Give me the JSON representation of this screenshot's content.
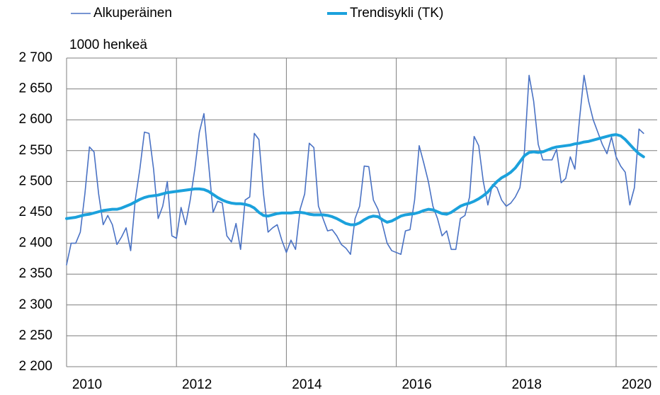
{
  "chart_data": {
    "type": "line",
    "y_label": "1000 henkeä",
    "categories": [
      "2010",
      null,
      null,
      null,
      null,
      null,
      null,
      null,
      null,
      null,
      null,
      null,
      null,
      null,
      null,
      null,
      null,
      null,
      null,
      null,
      null,
      null,
      null,
      null,
      "2012",
      null,
      null,
      null,
      null,
      null,
      null,
      null,
      null,
      null,
      null,
      null,
      null,
      null,
      null,
      null,
      null,
      null,
      null,
      null,
      null,
      null,
      null,
      null,
      "2014",
      null,
      null,
      null,
      null,
      null,
      null,
      null,
      null,
      null,
      null,
      null,
      null,
      null,
      null,
      null,
      null,
      null,
      null,
      null,
      null,
      null,
      null,
      null,
      "2016",
      null,
      null,
      null,
      null,
      null,
      null,
      null,
      null,
      null,
      null,
      null,
      null,
      null,
      null,
      null,
      null,
      null,
      null,
      null,
      null,
      null,
      null,
      null,
      "2018",
      null,
      null,
      null,
      null,
      null,
      null,
      null,
      null,
      null,
      null,
      null,
      null,
      null,
      null,
      null,
      null,
      null,
      null,
      null,
      null,
      null,
      null,
      null,
      "2020",
      null,
      null,
      null,
      null,
      null,
      null
    ],
    "series": [
      {
        "name": "Alkuperäinen",
        "color": "#4a72c4",
        "width": 1.6,
        "values": [
          2365,
          2400,
          2400,
          2418,
          2480,
          2556,
          2548,
          2480,
          2430,
          2445,
          2430,
          2398,
          2410,
          2425,
          2388,
          2470,
          2520,
          2580,
          2578,
          2520,
          2440,
          2460,
          2500,
          2412,
          2408,
          2458,
          2430,
          2470,
          2520,
          2580,
          2610,
          2530,
          2450,
          2468,
          2465,
          2412,
          2402,
          2432,
          2390,
          2470,
          2475,
          2578,
          2568,
          2480,
          2418,
          2425,
          2430,
          2405,
          2385,
          2405,
          2390,
          2455,
          2480,
          2562,
          2555,
          2460,
          2440,
          2420,
          2422,
          2412,
          2398,
          2392,
          2382,
          2440,
          2460,
          2525,
          2524,
          2470,
          2455,
          2430,
          2400,
          2388,
          2385,
          2382,
          2420,
          2422,
          2470,
          2558,
          2530,
          2500,
          2460,
          2440,
          2412,
          2420,
          2390,
          2390,
          2440,
          2445,
          2475,
          2573,
          2558,
          2500,
          2462,
          2495,
          2490,
          2470,
          2460,
          2465,
          2475,
          2490,
          2550,
          2672,
          2630,
          2560,
          2535,
          2535,
          2535,
          2552,
          2498,
          2505,
          2540,
          2520,
          2600,
          2672,
          2630,
          2600,
          2580,
          2560,
          2545,
          2572,
          2540,
          2525,
          2515,
          2462,
          2490,
          2585,
          2578
        ]
      },
      {
        "name": "Trendisykli (TK)",
        "color": "#1ba1dc",
        "width": 4,
        "values": [
          2440,
          2441,
          2442,
          2444,
          2446,
          2447,
          2449,
          2451,
          2453,
          2454,
          2455,
          2455,
          2457,
          2460,
          2463,
          2467,
          2471,
          2474,
          2476,
          2477,
          2478,
          2480,
          2482,
          2483,
          2484,
          2485,
          2486,
          2487,
          2488,
          2488,
          2487,
          2484,
          2479,
          2474,
          2470,
          2467,
          2465,
          2464,
          2464,
          2463,
          2461,
          2457,
          2450,
          2445,
          2444,
          2446,
          2448,
          2449,
          2449,
          2449,
          2450,
          2450,
          2449,
          2447,
          2446,
          2446,
          2446,
          2445,
          2443,
          2440,
          2436,
          2432,
          2430,
          2430,
          2433,
          2438,
          2442,
          2444,
          2443,
          2438,
          2434,
          2436,
          2440,
          2444,
          2446,
          2447,
          2448,
          2450,
          2453,
          2455,
          2454,
          2451,
          2448,
          2447,
          2450,
          2455,
          2460,
          2463,
          2465,
          2468,
          2472,
          2477,
          2483,
          2492,
          2500,
          2506,
          2510,
          2515,
          2522,
          2532,
          2542,
          2547,
          2548,
          2547,
          2548,
          2551,
          2554,
          2556,
          2557,
          2558,
          2559,
          2561,
          2562,
          2564,
          2565,
          2567,
          2569,
          2571,
          2573,
          2575,
          2576,
          2574,
          2568,
          2560,
          2552,
          2545,
          2540
        ]
      }
    ],
    "ylim": [
      2200,
      2700
    ],
    "yticks": [
      {
        "value": 2200,
        "label": "2 200"
      },
      {
        "value": 2250,
        "label": "2 250"
      },
      {
        "value": 2300,
        "label": "2 300"
      },
      {
        "value": 2350,
        "label": "2 350"
      },
      {
        "value": 2400,
        "label": "2 400"
      },
      {
        "value": 2450,
        "label": "2 450"
      },
      {
        "value": 2500,
        "label": "2 500"
      },
      {
        "value": 2550,
        "label": "2 550"
      },
      {
        "value": 2600,
        "label": "2 600"
      },
      {
        "value": 2650,
        "label": "2 650"
      },
      {
        "value": 2700,
        "label": "2 700"
      }
    ],
    "grid": true,
    "legend": "top"
  }
}
